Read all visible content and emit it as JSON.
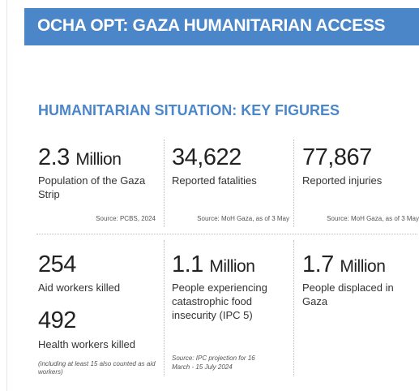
{
  "header": {
    "title": "OCHA OPT: GAZA HUMANITARIAN ACCESS"
  },
  "section": {
    "title": "HUMANITARIAN SITUATION: KEY FIGURES"
  },
  "figures": [
    {
      "number": "2.3",
      "unit": "Million",
      "label": "Population of the Gaza Strip",
      "source": "Source: PCBS, 2024"
    },
    {
      "number": "34,622",
      "label": "Reported fatalities",
      "source": "Source: MoH Gaza, as of 3 May"
    },
    {
      "number": "77,867",
      "label": "Reported injuries",
      "source": "Source: MoH Gaza, as of 3 May"
    },
    {
      "number": "254",
      "label": "Aid workers killed"
    },
    {
      "number": "492",
      "label": "Health workers killed",
      "note": "(including at least 15 also counted as aid workers)"
    },
    {
      "number": "1.1",
      "unit": "Million",
      "label": "People experiencing catastrophic food insecurity (IPC 5)",
      "source": "Source: IPC projection for 16 March - 15 July 2024"
    },
    {
      "number": "1.7",
      "unit": "Million",
      "label": "People displaced in Gaza"
    }
  ]
}
